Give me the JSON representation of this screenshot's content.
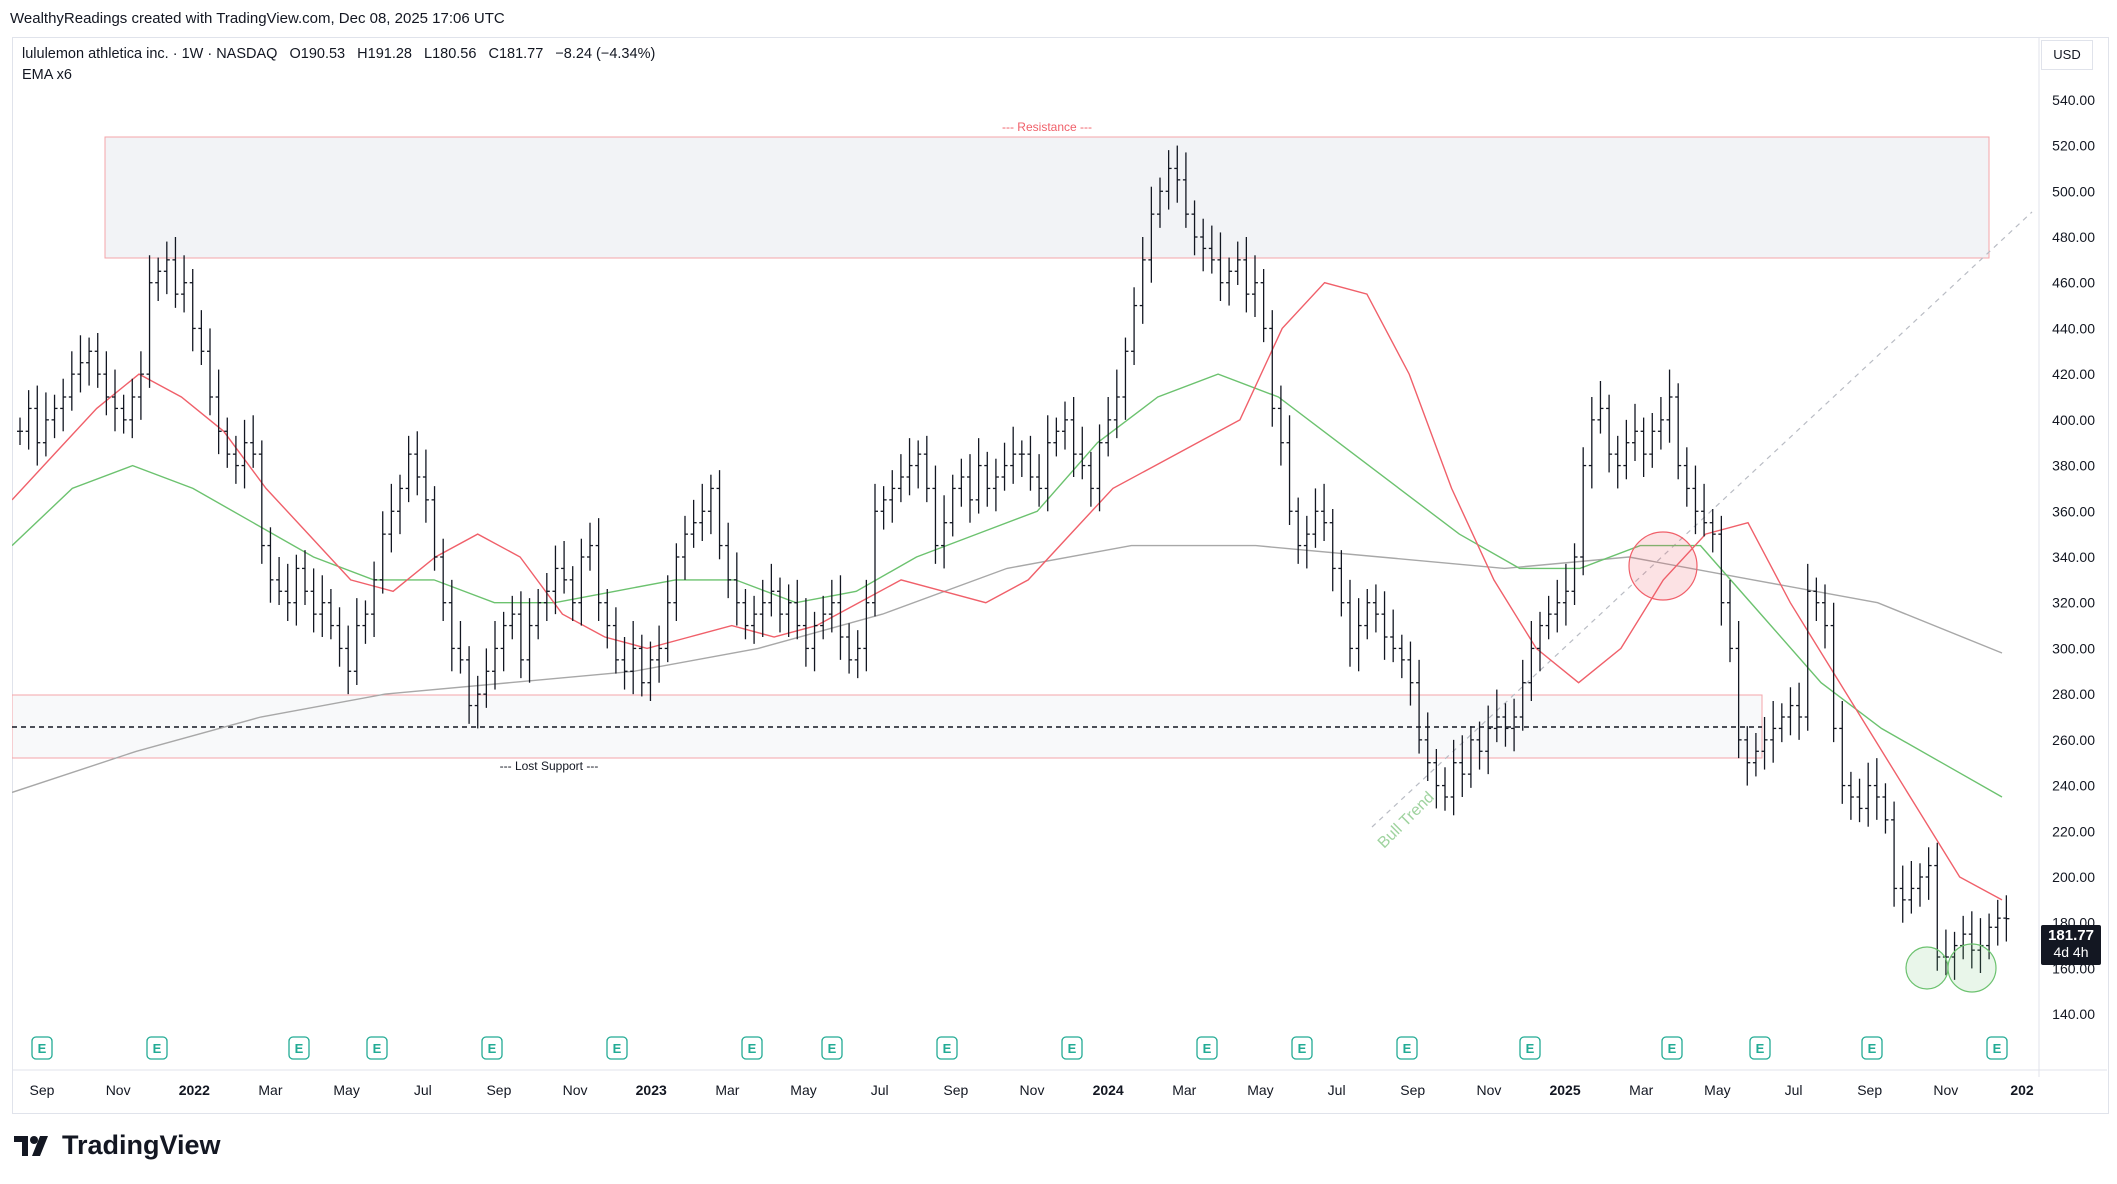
{
  "caption": "WealthyReadings created with TradingView.com, Dec 08, 2025 17:06 UTC",
  "legend": {
    "name": "lululemon athletica inc. · 1W · NASDAQ",
    "open": "O190.53",
    "high": "H191.28",
    "low": "L180.56",
    "close": "C181.77",
    "change": "−8.24 (−4.34%)",
    "indicator": "EMA x6"
  },
  "currency": "USD",
  "last_price": "181.77",
  "countdown": "4d 4h",
  "brand": "TradingView",
  "annotations": {
    "resistance": "--- Resistance ---",
    "lost_support": "--- Lost Support ---",
    "bull_trend": "Bull Trend"
  },
  "earnings_marker": "E",
  "colors": {
    "ema_fast": "#f0606a",
    "ema_mid": "#6cc26f",
    "ema_slow": "#a8a8a8",
    "resistance_zone": "#f2f3f6",
    "zone_border": "#f4a5aa",
    "candles": "#131722",
    "trend": "#9fd39f"
  },
  "chart_data": {
    "type": "ohlc",
    "title": "lululemon athletica inc. · 1W · NASDAQ",
    "ylim": [
      130,
      550
    ],
    "y_ticks": [
      140,
      160,
      180,
      200,
      220,
      240,
      260,
      280,
      300,
      320,
      340,
      360,
      380,
      400,
      420,
      440,
      460,
      480,
      500,
      520,
      540
    ],
    "x_labels": [
      "Sep",
      "Nov",
      "2022",
      "Mar",
      "May",
      "Jul",
      "Sep",
      "Nov",
      "2023",
      "Mar",
      "May",
      "Jul",
      "Sep",
      "Nov",
      "2024",
      "Mar",
      "May",
      "Jul",
      "Sep",
      "Nov",
      "2025",
      "Mar",
      "May",
      "Jul",
      "Sep",
      "Nov",
      "202"
    ],
    "bars_close": [
      395,
      405,
      390,
      400,
      405,
      410,
      420,
      425,
      430,
      420,
      410,
      405,
      400,
      410,
      420,
      460,
      465,
      470,
      455,
      460,
      440,
      430,
      410,
      395,
      385,
      380,
      390,
      385,
      345,
      330,
      325,
      320,
      335,
      325,
      315,
      320,
      310,
      300,
      290,
      310,
      315,
      330,
      350,
      360,
      370,
      385,
      375,
      365,
      340,
      320,
      300,
      295,
      275,
      280,
      290,
      300,
      310,
      315,
      295,
      310,
      320,
      325,
      335,
      330,
      320,
      340,
      345,
      320,
      310,
      295,
      290,
      300,
      285,
      295,
      300,
      320,
      340,
      350,
      355,
      360,
      370,
      345,
      330,
      320,
      310,
      315,
      320,
      325,
      315,
      320,
      310,
      300,
      310,
      315,
      320,
      305,
      295,
      300,
      320,
      360,
      365,
      370,
      375,
      380,
      385,
      370,
      345,
      355,
      370,
      375,
      365,
      380,
      370,
      375,
      380,
      385,
      385,
      375,
      370,
      390,
      395,
      400,
      385,
      380,
      370,
      390,
      400,
      410,
      430,
      450,
      470,
      490,
      500,
      510,
      505,
      490,
      480,
      475,
      470,
      460,
      465,
      470,
      455,
      460,
      440,
      405,
      390,
      360,
      345,
      350,
      360,
      355,
      335,
      320,
      300,
      310,
      320,
      315,
      305,
      300,
      295,
      285,
      260,
      250,
      240,
      235,
      250,
      245,
      260,
      255,
      265,
      270,
      265,
      270,
      285,
      300,
      310,
      315,
      320,
      325,
      340,
      380,
      400,
      405,
      385,
      380,
      390,
      395,
      385,
      395,
      400,
      410,
      380,
      370,
      360,
      355,
      350,
      320,
      300,
      260,
      250,
      255,
      260,
      265,
      270,
      275,
      270,
      325,
      320,
      310,
      265,
      240,
      235,
      230,
      240,
      235,
      225,
      195,
      190,
      195,
      200,
      205,
      165,
      165,
      170,
      175,
      168,
      170,
      178,
      182,
      181.77
    ],
    "series": [
      {
        "name": "EMA",
        "values": [
          365,
          385,
          405,
          420,
          410,
          395,
          370,
          350,
          330,
          325,
          340,
          350,
          340,
          315,
          305,
          300,
          305,
          310,
          305,
          310,
          320,
          330,
          325,
          320,
          330,
          350,
          370,
          380,
          390,
          400,
          440,
          460,
          455,
          420,
          370,
          330,
          300,
          285,
          300,
          330,
          350,
          355,
          320,
          290,
          260,
          230,
          200,
          190
        ]
      },
      {
        "name": "EMA",
        "values": [
          345,
          370,
          380,
          370,
          355,
          340,
          330,
          330,
          320,
          320,
          325,
          330,
          330,
          320,
          325,
          340,
          350,
          360,
          390,
          410,
          420,
          410,
          390,
          370,
          350,
          335,
          335,
          345,
          345,
          315,
          285,
          265,
          250,
          235
        ]
      },
      {
        "name": "EMA",
        "values": [
          237,
          255,
          270,
          280,
          285,
          290,
          300,
          315,
          335,
          345,
          345,
          340,
          335,
          340,
          330,
          320,
          298
        ]
      }
    ],
    "zones": [
      {
        "label": "--- Resistance ---",
        "from": 466,
        "to": 516
      },
      {
        "label": "--- Lost Support ---",
        "from": 256,
        "to": 282,
        "midline": 269
      }
    ]
  }
}
